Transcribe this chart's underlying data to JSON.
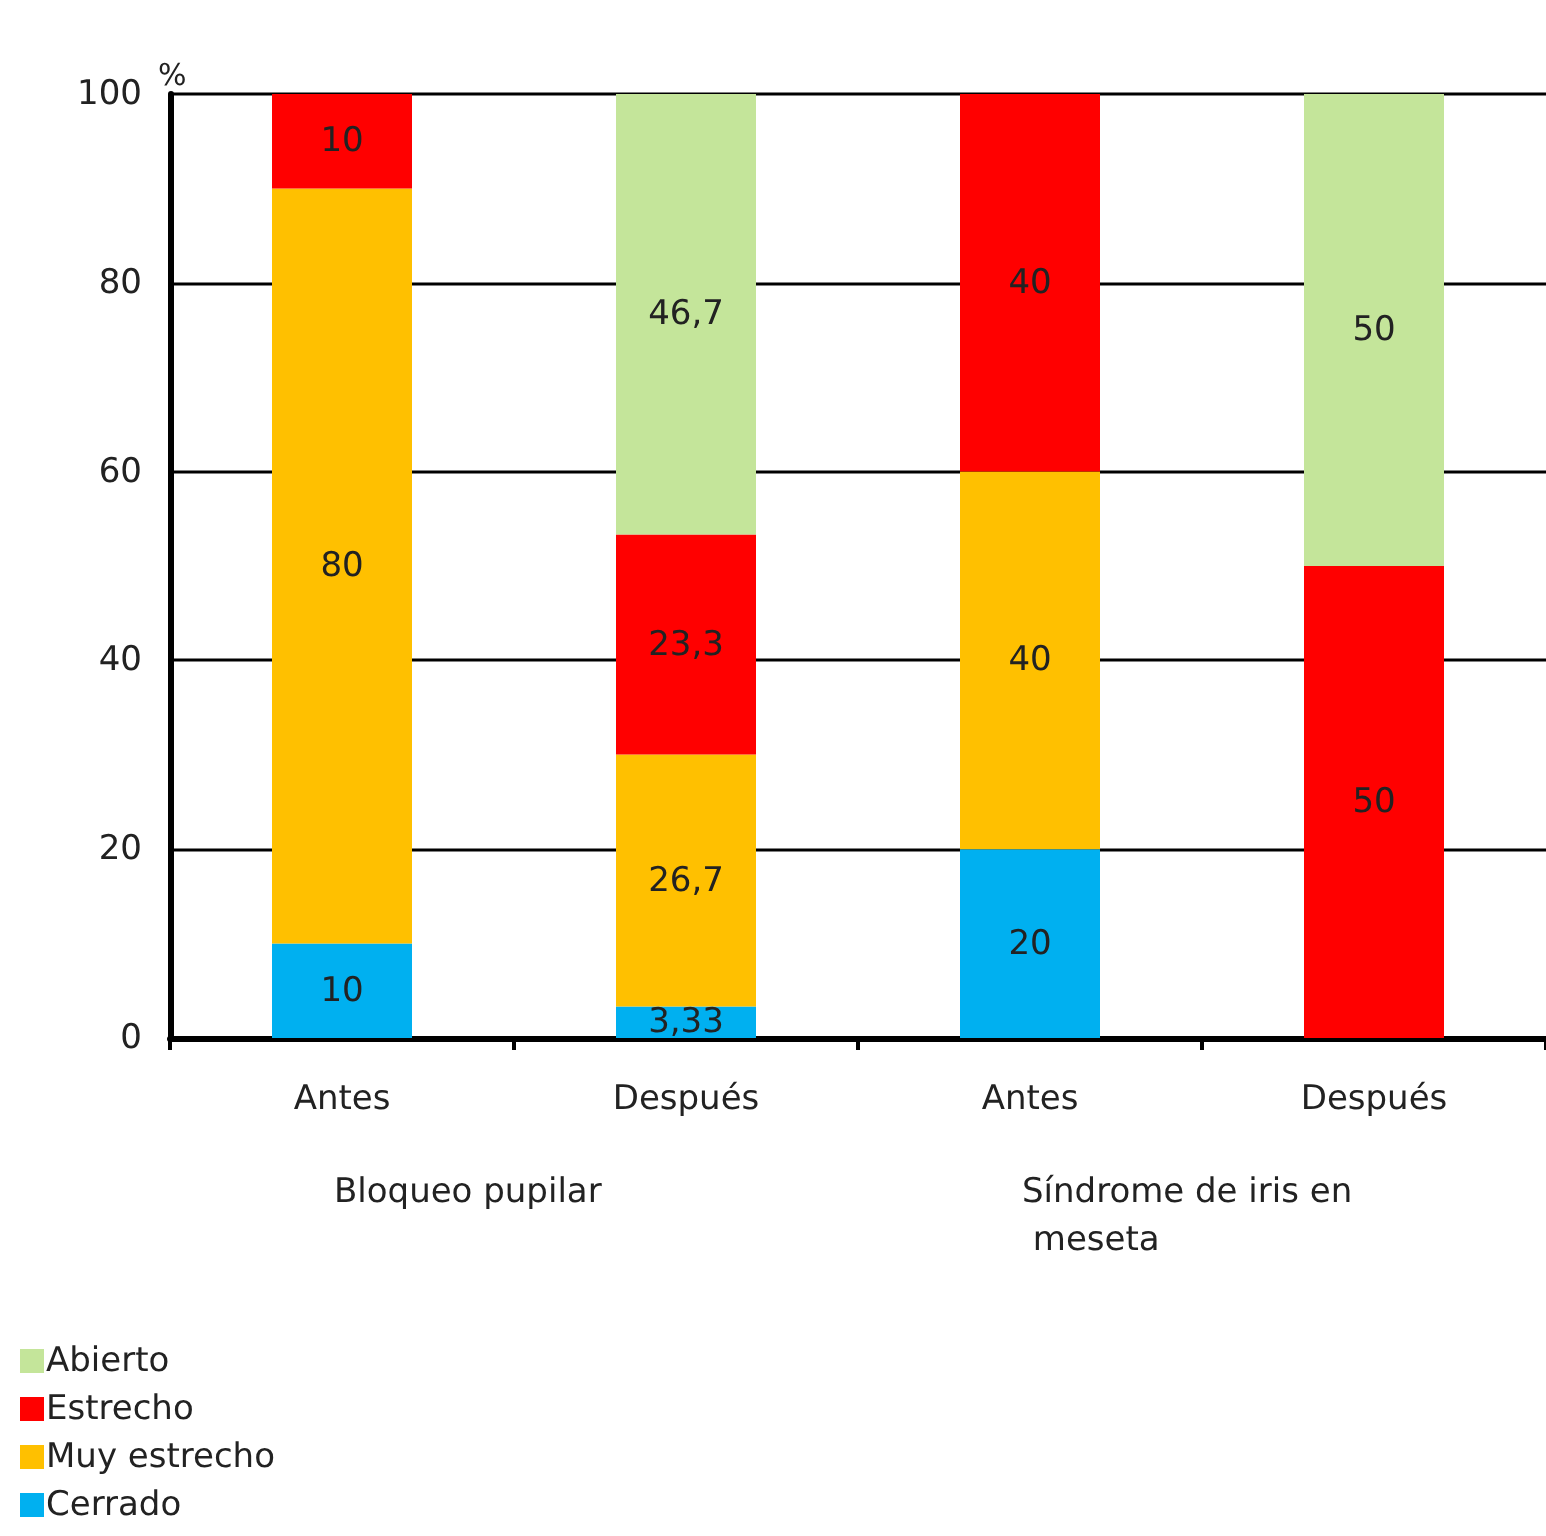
{
  "chart_data": {
    "type": "bar",
    "stacked": true,
    "ylabel": "%",
    "categories": [
      "Antes",
      "Después",
      "Antes",
      "Después"
    ],
    "annotations": [
      "Bloqueo pupilar",
      "Síndrome de iris en meseta"
    ],
    "series": [
      {
        "name": "Cerrado",
        "color": "#00b0f0",
        "values": [
          10,
          3.33,
          20,
          null
        ],
        "value_labels": [
          "10",
          "3,33",
          "20",
          null
        ]
      },
      {
        "name": "Muy estrecho",
        "color": "#ffc000",
        "values": [
          80,
          26.7,
          40,
          null
        ],
        "value_labels": [
          "80",
          "26,7",
          "40",
          null
        ]
      },
      {
        "name": "Estrecho",
        "color": "#ff0000",
        "values": [
          10,
          23.3,
          40,
          50
        ],
        "value_labels": [
          "10",
          "23,3",
          "40",
          "50"
        ]
      },
      {
        "name": "Abierto",
        "color": "#c4e59a",
        "values": [
          null,
          46.7,
          null,
          50
        ],
        "value_labels": [
          null,
          "46,7",
          null,
          "50"
        ]
      }
    ],
    "ylim": [
      0,
      100
    ],
    "yticks": [
      0,
      20,
      40,
      60,
      80,
      100
    ],
    "grid": "y",
    "legend": "bottom left"
  }
}
